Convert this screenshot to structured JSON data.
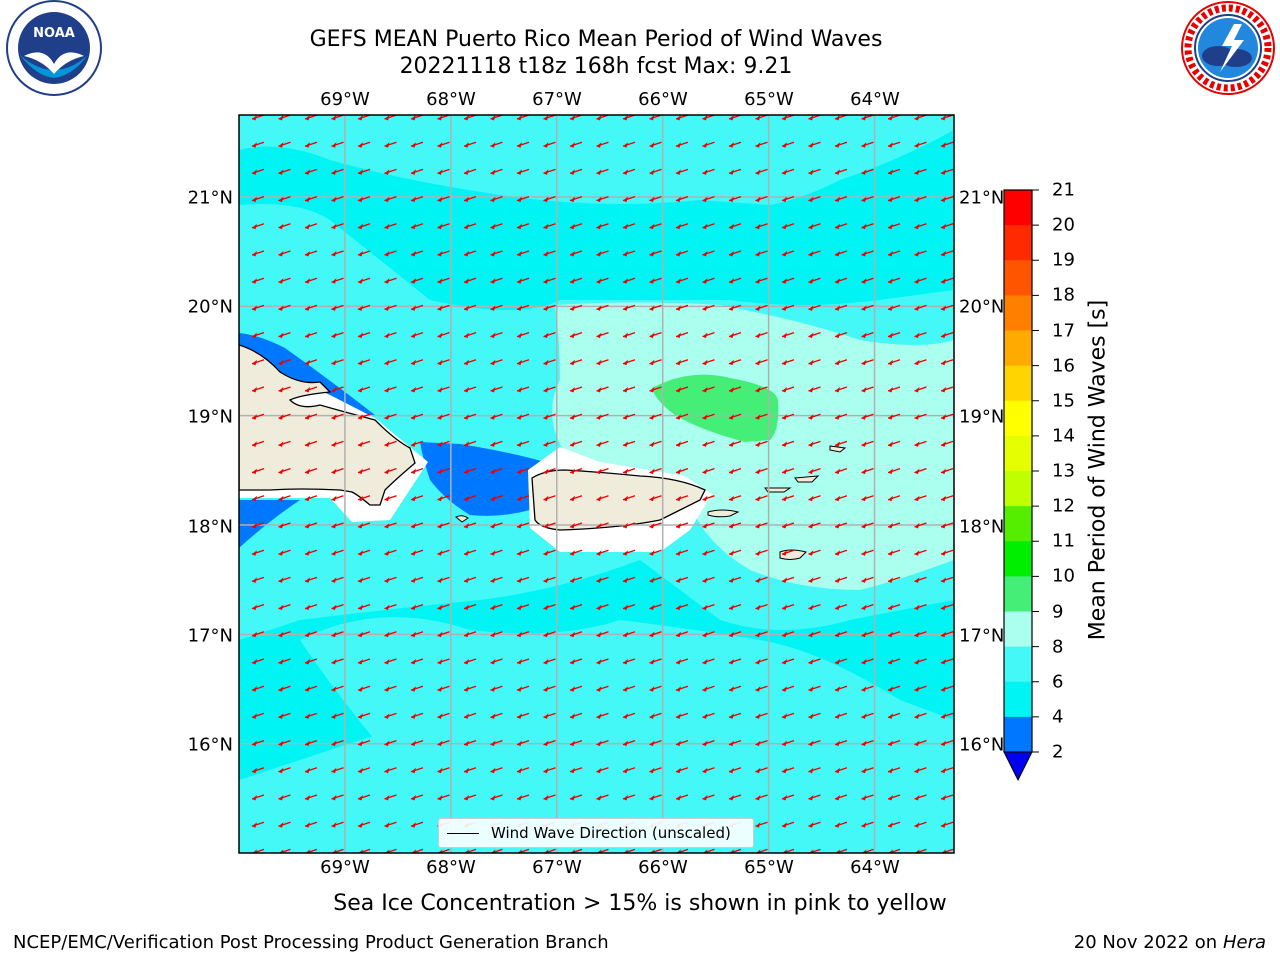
{
  "header": {
    "title_line1": "GEFS MEAN Puerto Rico Mean Period of Wind Waves",
    "title_line2": "20221118 t18z 168h fcst   Max: 9.21"
  },
  "logos": {
    "noaa": {
      "text": "NOAA",
      "ring_text": "NATIONAL OCEANIC AND ATMOSPHERIC ADMINISTRATION · U.S. DEPARTMENT OF COMMERCE"
    },
    "nws": {
      "ring_text": "NATIONAL WEATHER SERVICE"
    }
  },
  "map": {
    "lon_labels": [
      "69°W",
      "68°W",
      "67°W",
      "66°W",
      "65°W",
      "64°W"
    ],
    "lat_labels": [
      "21°N",
      "20°N",
      "19°N",
      "18°N",
      "17°N",
      "16°N"
    ],
    "lon_values": [
      -69,
      -68,
      -67,
      -66,
      -65,
      -64
    ],
    "lat_values": [
      21,
      20,
      19,
      18,
      17,
      16
    ],
    "extent": {
      "lon_min": -70,
      "lon_max": -63.25,
      "lat_min": 15.0,
      "lat_max": 21.75
    },
    "max_value": 9.21,
    "arrow_direction": "toward west-southwest",
    "arrow_color": "#ee0000",
    "land_color": "#efecdc"
  },
  "legend": {
    "label": "Wind Wave Direction (unscaled)"
  },
  "colorbar": {
    "label": "Mean Period of Wind Waves [s]",
    "ticks": [
      "21",
      "20",
      "19",
      "18",
      "17",
      "16",
      "15",
      "14",
      "13",
      "12",
      "11",
      "10",
      "9",
      "8",
      "6",
      "4",
      "2"
    ],
    "bins": [
      {
        "range": "20-21",
        "color": "#ff0000"
      },
      {
        "range": "19-20",
        "color": "#ff2a00"
      },
      {
        "range": "18-19",
        "color": "#ff5500"
      },
      {
        "range": "17-18",
        "color": "#ff8000"
      },
      {
        "range": "16-17",
        "color": "#ffaa00"
      },
      {
        "range": "15-16",
        "color": "#ffd400"
      },
      {
        "range": "14-15",
        "color": "#ffff00"
      },
      {
        "range": "13-14",
        "color": "#e6ff00"
      },
      {
        "range": "12-13",
        "color": "#bfff00"
      },
      {
        "range": "11-12",
        "color": "#55ee00"
      },
      {
        "range": "10-11",
        "color": "#00ee00"
      },
      {
        "range": "9-10",
        "color": "#44ee77"
      },
      {
        "range": "8-9",
        "color": "#aaffee"
      },
      {
        "range": "6-8",
        "color": "#44f8f8"
      },
      {
        "range": "4-6",
        "color": "#00f4f4"
      },
      {
        "range": "2-4",
        "color": "#0077ff"
      },
      {
        "range": "<2",
        "color": "#0000ee"
      }
    ]
  },
  "footer": {
    "sea_ice_note": "Sea Ice Concentration > 15% is shown in pink to yellow",
    "left": "NCEP/EMC/Verification Post Processing Product Generation Branch",
    "right_date": "20 Nov 2022 on",
    "right_host": "Hera"
  }
}
